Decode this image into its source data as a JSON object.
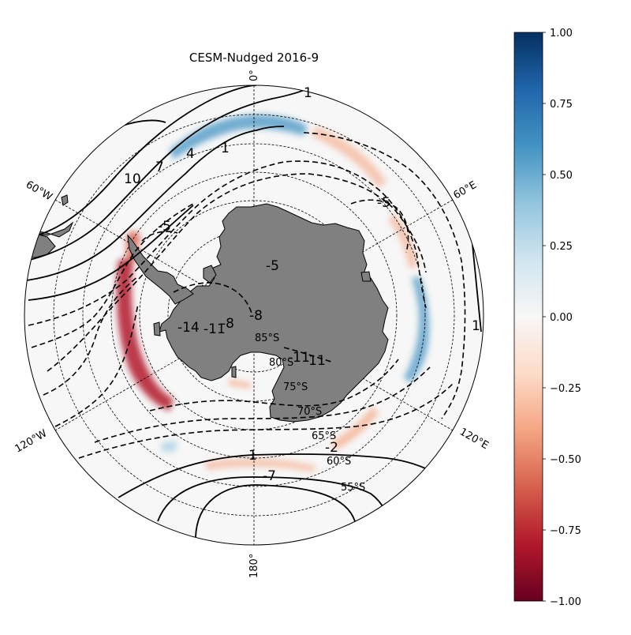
{
  "title": "CESM-Nudged 2016-9",
  "longitude_labels": [
    "0°",
    "60°E",
    "120°E",
    "180°",
    "120°W",
    "60°W"
  ],
  "latitude_labels": [
    "85°S",
    "80°S",
    "75°S",
    "70°S",
    "65°S",
    "60°S",
    "55°S"
  ],
  "contour_labels": [
    "1",
    "1",
    "1",
    "4",
    "7",
    "10",
    "-5",
    "-5",
    "-5",
    "-8",
    "-11",
    "-14",
    "-11",
    "-11",
    "-2",
    "1",
    "-7",
    "-8"
  ],
  "colorbar": {
    "ticks": [
      "1.00",
      "0.75",
      "0.50",
      "0.25",
      "0.00",
      "−0.25",
      "−0.50",
      "−0.75",
      "−1.00"
    ],
    "min": -1.0,
    "max": 1.0,
    "colormap": "RdBu",
    "colors": [
      "#67001f",
      "#b2182b",
      "#d6604d",
      "#f4a582",
      "#fddbc7",
      "#f7f7f7",
      "#d1e5f0",
      "#92c5de",
      "#4393c3",
      "#2166ac",
      "#053061"
    ]
  },
  "colors": {
    "land": "#808080",
    "ocean_background": "#f7f7f7",
    "contour_line": "#000000"
  }
}
